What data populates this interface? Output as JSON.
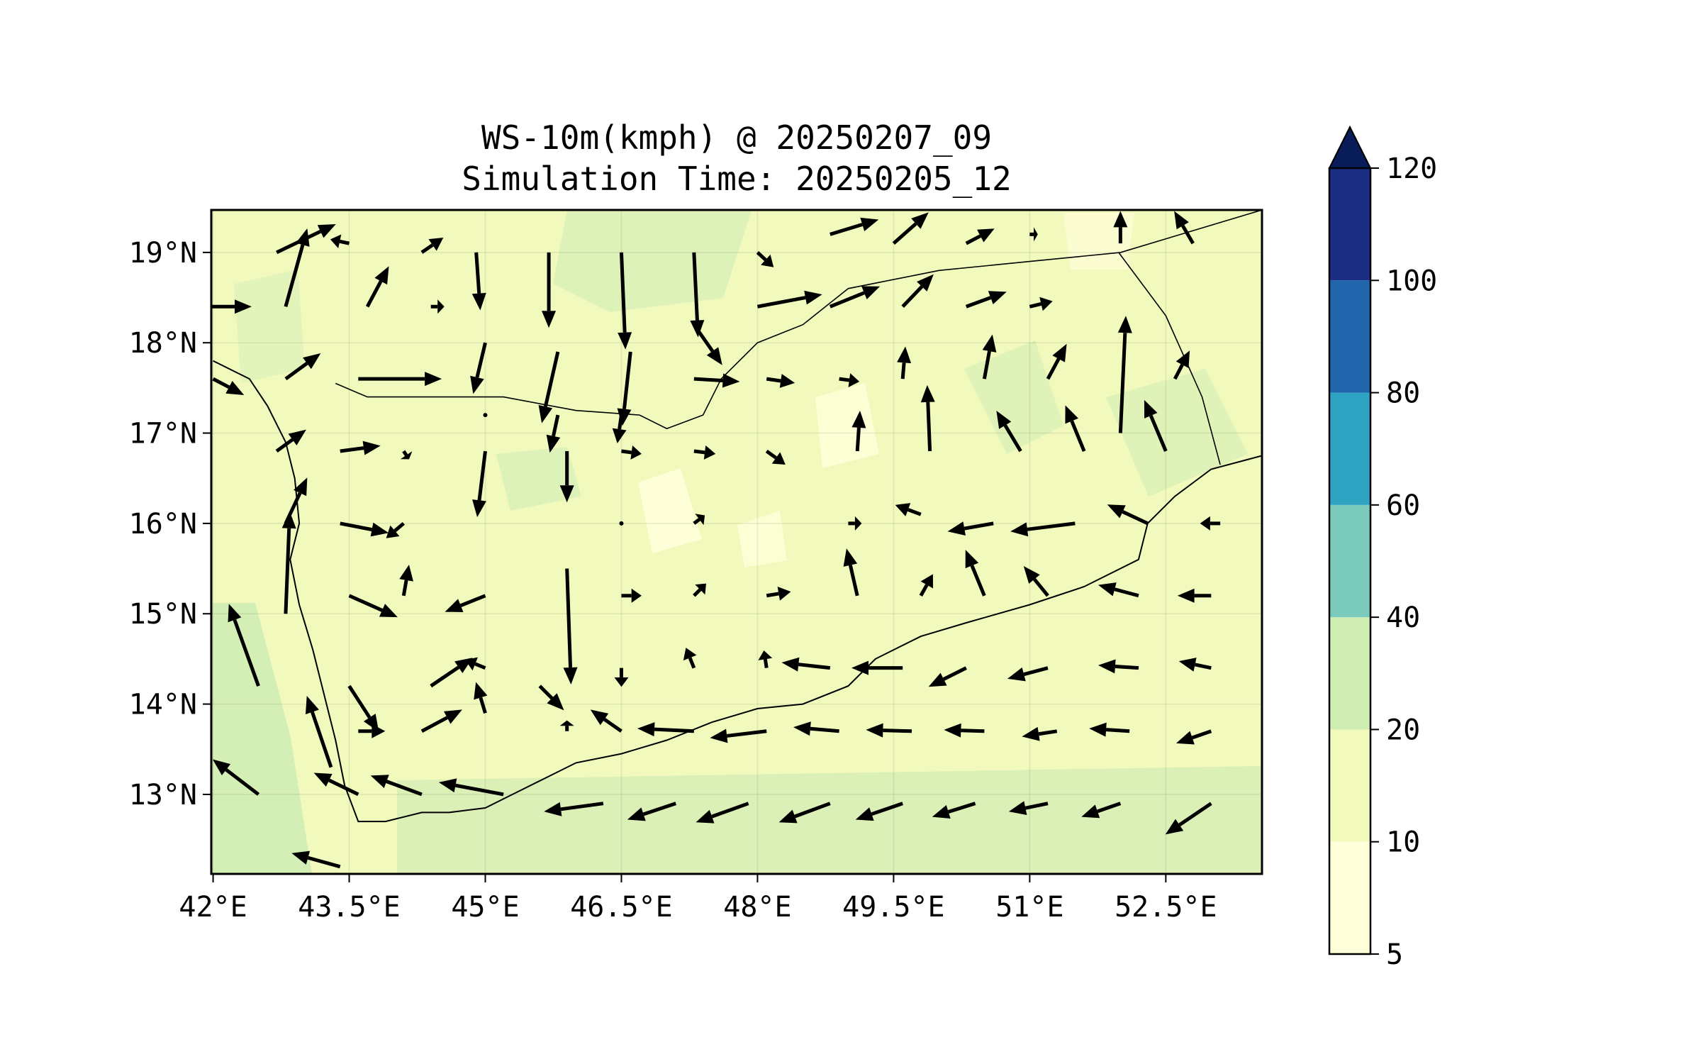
{
  "figure": {
    "title": "WS-10m(kmph) @ 20250207_09",
    "subtitle": "Simulation Time: 20250205_12"
  },
  "map": {
    "lon_range": [
      41.98,
      53.56
    ],
    "lat_range": [
      12.12,
      19.47
    ],
    "x_ticks": [
      {
        "value": 42.0,
        "label": "42°E"
      },
      {
        "value": 43.5,
        "label": "43.5°E"
      },
      {
        "value": 45.0,
        "label": "45°E"
      },
      {
        "value": 46.5,
        "label": "46.5°E"
      },
      {
        "value": 48.0,
        "label": "48°E"
      },
      {
        "value": 49.5,
        "label": "49.5°E"
      },
      {
        "value": 51.0,
        "label": "51°E"
      },
      {
        "value": 52.5,
        "label": "52.5°E"
      }
    ],
    "y_ticks": [
      {
        "value": 19,
        "label": "19°N"
      },
      {
        "value": 18,
        "label": "18°N"
      },
      {
        "value": 17,
        "label": "17°N"
      },
      {
        "value": 16,
        "label": "16°N"
      },
      {
        "value": 15,
        "label": "15°N"
      },
      {
        "value": 14,
        "label": "14°N"
      },
      {
        "value": 13,
        "label": "13°N"
      }
    ],
    "grid": true,
    "background_color": "#f1f9bd",
    "coastline": [
      [
        42.0,
        17.8
      ],
      [
        42.4,
        17.6
      ],
      [
        42.6,
        17.3
      ],
      [
        42.8,
        16.9
      ],
      [
        42.9,
        16.5
      ],
      [
        42.95,
        16.0
      ],
      [
        42.85,
        15.6
      ],
      [
        42.95,
        15.1
      ],
      [
        43.1,
        14.6
      ],
      [
        43.2,
        14.2
      ],
      [
        43.35,
        13.6
      ],
      [
        43.45,
        13.1
      ],
      [
        43.6,
        12.7
      ],
      [
        43.9,
        12.7
      ],
      [
        44.3,
        12.8
      ],
      [
        44.6,
        12.8
      ],
      [
        45.0,
        12.85
      ],
      [
        45.3,
        13.0
      ],
      [
        45.6,
        13.15
      ],
      [
        46.0,
        13.35
      ],
      [
        46.5,
        13.45
      ],
      [
        47.0,
        13.6
      ],
      [
        47.5,
        13.8
      ],
      [
        48.0,
        13.95
      ],
      [
        48.5,
        14.0
      ],
      [
        49.0,
        14.2
      ],
      [
        49.3,
        14.5
      ],
      [
        49.8,
        14.75
      ],
      [
        50.3,
        14.9
      ],
      [
        51.0,
        15.1
      ],
      [
        51.6,
        15.3
      ],
      [
        52.2,
        15.6
      ],
      [
        52.3,
        16.0
      ],
      [
        52.6,
        16.3
      ],
      [
        53.0,
        16.6
      ],
      [
        53.56,
        16.75
      ]
    ],
    "borders": [
      [
        [
          43.35,
          17.55
        ],
        [
          43.7,
          17.4
        ],
        [
          44.5,
          17.4
        ],
        [
          45.2,
          17.4
        ],
        [
          46.0,
          17.25
        ],
        [
          46.7,
          17.2
        ],
        [
          47.0,
          17.05
        ],
        [
          47.4,
          17.2
        ],
        [
          47.6,
          17.6
        ],
        [
          48.0,
          18.0
        ],
        [
          48.5,
          18.2
        ],
        [
          49.0,
          18.6
        ],
        [
          50.0,
          18.8
        ],
        [
          51.0,
          18.9
        ],
        [
          52.0,
          19.0
        ],
        [
          53.56,
          19.47
        ]
      ],
      [
        [
          51.98,
          19.0
        ],
        [
          52.5,
          18.3
        ],
        [
          52.9,
          17.4
        ],
        [
          53.1,
          16.65
        ]
      ]
    ]
  },
  "colorbar": {
    "levels": [
      5,
      10,
      20,
      40,
      60,
      80,
      100,
      120
    ],
    "tick_labels": [
      "5",
      "10",
      "20",
      "40",
      "60",
      "80",
      "100",
      "120"
    ],
    "colors": [
      "#ffffd9",
      "#f1f9bd",
      "#d0edb4",
      "#7acbbc",
      "#2ea3c2",
      "#2166ac",
      "#1c2e82"
    ],
    "extend": "max",
    "extend_color": "#081d58"
  },
  "chart_data": {
    "type": "quiver",
    "title": "WS-10m(kmph) @ 20250207_09",
    "subtitle": "Simulation Time: 20250205_12",
    "xlabel": "",
    "ylabel": "",
    "xlim": [
      41.98,
      53.56
    ],
    "ylim": [
      12.12,
      19.47
    ],
    "legend": "colorbar-right",
    "grid": true,
    "wind_vectors": [
      {
        "lon": 44.9,
        "lat": 19.0,
        "u": 0.3,
        "v": -4.3
      },
      {
        "lon": 45.7,
        "lat": 19.0,
        "u": 0.0,
        "v": -5.6
      },
      {
        "lon": 46.5,
        "lat": 19.0,
        "u": 0.3,
        "v": -7.2
      },
      {
        "lon": 47.3,
        "lat": 19.0,
        "u": 0.3,
        "v": -6.3
      },
      {
        "lon": 48.0,
        "lat": 19.0,
        "u": 1.2,
        "v": -1.1
      },
      {
        "lon": 48.8,
        "lat": 19.2,
        "u": 3.6,
        "v": 1.1
      },
      {
        "lon": 49.5,
        "lat": 19.1,
        "u": 2.6,
        "v": 2.3
      },
      {
        "lon": 50.3,
        "lat": 19.1,
        "u": 2.1,
        "v": 1.1
      },
      {
        "lon": 51.0,
        "lat": 19.2,
        "u": 0.6,
        "v": 0.0
      },
      {
        "lon": 52.0,
        "lat": 19.1,
        "u": 0.0,
        "v": 2.4
      },
      {
        "lon": 52.8,
        "lat": 19.1,
        "u": -1.4,
        "v": 2.4
      },
      {
        "lon": 42.7,
        "lat": 19.0,
        "u": 4.4,
        "v": 2.1
      },
      {
        "lon": 43.5,
        "lat": 19.1,
        "u": -1.4,
        "v": 0.3
      },
      {
        "lon": 44.3,
        "lat": 19.0,
        "u": 1.6,
        "v": 1.1
      },
      {
        "lon": 42.8,
        "lat": 18.4,
        "u": 1.6,
        "v": 5.8
      },
      {
        "lon": 43.7,
        "lat": 18.4,
        "u": 1.6,
        "v": 3.0
      },
      {
        "lon": 44.4,
        "lat": 18.4,
        "u": 1.0,
        "v": 0.0
      },
      {
        "lon": 45.0,
        "lat": 18.0,
        "u": -0.9,
        "v": -3.8
      },
      {
        "lon": 45.8,
        "lat": 17.9,
        "u": -1.2,
        "v": -5.3
      },
      {
        "lon": 46.6,
        "lat": 17.9,
        "u": -0.6,
        "v": -5.5
      },
      {
        "lon": 47.3,
        "lat": 18.2,
        "u": 2.1,
        "v": -3.0
      },
      {
        "lon": 48.0,
        "lat": 18.4,
        "u": 4.8,
        "v": 0.9
      },
      {
        "lon": 48.8,
        "lat": 18.4,
        "u": 3.7,
        "v": 1.5
      },
      {
        "lon": 49.6,
        "lat": 18.4,
        "u": 2.3,
        "v": 2.4
      },
      {
        "lon": 50.3,
        "lat": 18.4,
        "u": 3.0,
        "v": 1.1
      },
      {
        "lon": 51.0,
        "lat": 18.4,
        "u": 1.7,
        "v": 0.4
      },
      {
        "lon": 41.98,
        "lat": 18.4,
        "u": 3.0,
        "v": 0.0
      },
      {
        "lon": 42.8,
        "lat": 17.6,
        "u": 2.6,
        "v": 1.9
      },
      {
        "lon": 43.6,
        "lat": 17.6,
        "u": 6.2,
        "v": 0.0
      },
      {
        "lon": 45.0,
        "lat": 17.2,
        "u": 0.0,
        "v": 0.0
      },
      {
        "lon": 45.8,
        "lat": 17.2,
        "u": -0.6,
        "v": -2.8
      },
      {
        "lon": 46.5,
        "lat": 17.2,
        "u": -0.3,
        "v": -2.1
      },
      {
        "lon": 47.3,
        "lat": 17.6,
        "u": 3.4,
        "v": -0.2
      },
      {
        "lon": 48.1,
        "lat": 17.6,
        "u": 2.1,
        "v": -0.3
      },
      {
        "lon": 48.9,
        "lat": 17.6,
        "u": 1.5,
        "v": -0.2
      },
      {
        "lon": 49.6,
        "lat": 17.6,
        "u": 0.2,
        "v": 2.4
      },
      {
        "lon": 50.5,
        "lat": 17.6,
        "u": 0.6,
        "v": 3.3
      },
      {
        "lon": 51.2,
        "lat": 17.6,
        "u": 1.4,
        "v": 2.6
      },
      {
        "lon": 52.0,
        "lat": 17.0,
        "u": 0.4,
        "v": 8.7
      },
      {
        "lon": 52.6,
        "lat": 17.6,
        "u": 1.1,
        "v": 2.1
      },
      {
        "lon": 42.0,
        "lat": 17.6,
        "u": 2.3,
        "v": -1.2
      },
      {
        "lon": 42.7,
        "lat": 16.8,
        "u": 2.2,
        "v": 1.6
      },
      {
        "lon": 43.4,
        "lat": 16.8,
        "u": 3.0,
        "v": 0.4
      },
      {
        "lon": 44.1,
        "lat": 16.8,
        "u": 0.4,
        "v": -0.6
      },
      {
        "lon": 45.0,
        "lat": 16.8,
        "u": -0.6,
        "v": -4.9
      },
      {
        "lon": 45.9,
        "lat": 16.8,
        "u": 0.0,
        "v": -3.8
      },
      {
        "lon": 46.5,
        "lat": 16.8,
        "u": 1.5,
        "v": -0.2
      },
      {
        "lon": 47.3,
        "lat": 16.8,
        "u": 1.6,
        "v": -0.2
      },
      {
        "lon": 48.1,
        "lat": 16.8,
        "u": 1.4,
        "v": -1.0
      },
      {
        "lon": 49.1,
        "lat": 16.8,
        "u": 0.2,
        "v": 3.0
      },
      {
        "lon": 49.9,
        "lat": 16.8,
        "u": -0.2,
        "v": 4.9
      },
      {
        "lon": 50.9,
        "lat": 16.8,
        "u": -1.8,
        "v": 3.0
      },
      {
        "lon": 51.6,
        "lat": 16.8,
        "u": -1.4,
        "v": 3.4
      },
      {
        "lon": 52.5,
        "lat": 16.8,
        "u": -1.6,
        "v": 3.8
      },
      {
        "lon": 42.8,
        "lat": 16.0,
        "u": 1.6,
        "v": 3.4
      },
      {
        "lon": 43.4,
        "lat": 16.0,
        "u": 3.6,
        "v": -0.7
      },
      {
        "lon": 44.1,
        "lat": 16.0,
        "u": -1.3,
        "v": -1.1
      },
      {
        "lon": 46.5,
        "lat": 16.0,
        "u": 0.0,
        "v": 0.0
      },
      {
        "lon": 47.3,
        "lat": 16.0,
        "u": 0.8,
        "v": 0.6
      },
      {
        "lon": 49.0,
        "lat": 16.0,
        "u": 1.0,
        "v": 0.0
      },
      {
        "lon": 49.8,
        "lat": 16.1,
        "u": -1.9,
        "v": 0.7
      },
      {
        "lon": 50.6,
        "lat": 16.0,
        "u": -3.4,
        "v": -0.6
      },
      {
        "lon": 51.5,
        "lat": 16.0,
        "u": -4.8,
        "v": -0.6
      },
      {
        "lon": 52.3,
        "lat": 16.0,
        "u": -3.0,
        "v": 1.4
      },
      {
        "lon": 53.1,
        "lat": 16.0,
        "u": -1.5,
        "v": 0.0
      },
      {
        "lon": 42.8,
        "lat": 15.0,
        "u": 0.3,
        "v": 7.6
      },
      {
        "lon": 43.5,
        "lat": 15.2,
        "u": 3.6,
        "v": -1.6
      },
      {
        "lon": 44.1,
        "lat": 15.2,
        "u": 0.4,
        "v": 2.3
      },
      {
        "lon": 45.0,
        "lat": 15.2,
        "u": -3.0,
        "v": -1.2
      },
      {
        "lon": 45.9,
        "lat": 15.5,
        "u": 0.3,
        "v": -8.6
      },
      {
        "lon": 46.5,
        "lat": 15.2,
        "u": 1.5,
        "v": 0.0
      },
      {
        "lon": 47.3,
        "lat": 15.2,
        "u": 0.9,
        "v": 0.9
      },
      {
        "lon": 48.1,
        "lat": 15.2,
        "u": 1.8,
        "v": 0.3
      },
      {
        "lon": 49.1,
        "lat": 15.2,
        "u": -0.8,
        "v": 3.5
      },
      {
        "lon": 49.8,
        "lat": 15.2,
        "u": 0.9,
        "v": 1.6
      },
      {
        "lon": 50.5,
        "lat": 15.2,
        "u": -1.4,
        "v": 3.4
      },
      {
        "lon": 51.2,
        "lat": 15.2,
        "u": -1.8,
        "v": 2.2
      },
      {
        "lon": 52.2,
        "lat": 15.2,
        "u": -3.0,
        "v": 0.8
      },
      {
        "lon": 53.0,
        "lat": 15.2,
        "u": -2.5,
        "v": 0.0
      },
      {
        "lon": 42.5,
        "lat": 14.2,
        "u": -2.2,
        "v": 6.1
      },
      {
        "lon": 43.5,
        "lat": 14.2,
        "u": 2.2,
        "v": -3.4
      },
      {
        "lon": 44.4,
        "lat": 14.2,
        "u": 3.1,
        "v": 2.1
      },
      {
        "lon": 45.0,
        "lat": 14.4,
        "u": -1.5,
        "v": 0.6
      },
      {
        "lon": 45.6,
        "lat": 14.2,
        "u": 1.8,
        "v": -1.8
      },
      {
        "lon": 46.5,
        "lat": 14.4,
        "u": 0.0,
        "v": -1.4
      },
      {
        "lon": 47.3,
        "lat": 14.4,
        "u": -0.6,
        "v": 1.5
      },
      {
        "lon": 48.1,
        "lat": 14.4,
        "u": -0.2,
        "v": 1.3
      },
      {
        "lon": 48.8,
        "lat": 14.4,
        "u": -3.6,
        "v": 0.4
      },
      {
        "lon": 49.6,
        "lat": 14.4,
        "u": -3.8,
        "v": 0.0
      },
      {
        "lon": 50.3,
        "lat": 14.4,
        "u": -2.8,
        "v": -1.4
      },
      {
        "lon": 51.2,
        "lat": 14.4,
        "u": -3.0,
        "v": -0.8
      },
      {
        "lon": 52.2,
        "lat": 14.4,
        "u": -3.0,
        "v": 0.2
      },
      {
        "lon": 53.0,
        "lat": 14.4,
        "u": -2.4,
        "v": 0.5
      },
      {
        "lon": 43.3,
        "lat": 13.3,
        "u": -1.8,
        "v": 5.3
      },
      {
        "lon": 43.6,
        "lat": 13.7,
        "u": 2.0,
        "v": 0.0
      },
      {
        "lon": 44.3,
        "lat": 13.7,
        "u": 3.0,
        "v": 1.6
      },
      {
        "lon": 45.0,
        "lat": 13.9,
        "u": -0.7,
        "v": 2.3
      },
      {
        "lon": 45.9,
        "lat": 13.7,
        "u": 0.0,
        "v": 0.8
      },
      {
        "lon": 46.5,
        "lat": 13.7,
        "u": -2.3,
        "v": 1.6
      },
      {
        "lon": 47.3,
        "lat": 13.7,
        "u": -4.2,
        "v": 0.2
      },
      {
        "lon": 48.1,
        "lat": 13.7,
        "u": -4.2,
        "v": -0.5
      },
      {
        "lon": 48.9,
        "lat": 13.7,
        "u": -3.4,
        "v": 0.3
      },
      {
        "lon": 49.7,
        "lat": 13.7,
        "u": -3.4,
        "v": 0.1
      },
      {
        "lon": 50.5,
        "lat": 13.7,
        "u": -3.0,
        "v": 0.1
      },
      {
        "lon": 51.3,
        "lat": 13.7,
        "u": -2.6,
        "v": -0.4
      },
      {
        "lon": 52.1,
        "lat": 13.7,
        "u": -3.0,
        "v": 0.2
      },
      {
        "lon": 53.0,
        "lat": 13.7,
        "u": -2.6,
        "v": -0.9
      },
      {
        "lon": 42.5,
        "lat": 13.0,
        "u": -3.4,
        "v": 2.6
      },
      {
        "lon": 43.6,
        "lat": 13.0,
        "u": -3.3,
        "v": 1.6
      },
      {
        "lon": 44.3,
        "lat": 13.0,
        "u": -3.8,
        "v": 1.4
      },
      {
        "lon": 45.2,
        "lat": 13.0,
        "u": -4.8,
        "v": 0.9
      },
      {
        "lon": 46.3,
        "lat": 12.9,
        "u": -4.4,
        "v": -0.6
      },
      {
        "lon": 47.1,
        "lat": 12.9,
        "u": -3.6,
        "v": -1.2
      },
      {
        "lon": 47.9,
        "lat": 12.9,
        "u": -3.9,
        "v": -1.4
      },
      {
        "lon": 48.8,
        "lat": 12.9,
        "u": -3.8,
        "v": -1.4
      },
      {
        "lon": 49.6,
        "lat": 12.9,
        "u": -3.5,
        "v": -1.2
      },
      {
        "lon": 50.4,
        "lat": 12.9,
        "u": -3.2,
        "v": -1.0
      },
      {
        "lon": 51.2,
        "lat": 12.9,
        "u": -2.9,
        "v": -0.6
      },
      {
        "lon": 52.0,
        "lat": 12.9,
        "u": -2.9,
        "v": -1.0
      },
      {
        "lon": 53.0,
        "lat": 12.9,
        "u": -3.4,
        "v": -2.3
      },
      {
        "lon": 43.4,
        "lat": 12.2,
        "u": -3.6,
        "v": 1.0
      }
    ]
  }
}
